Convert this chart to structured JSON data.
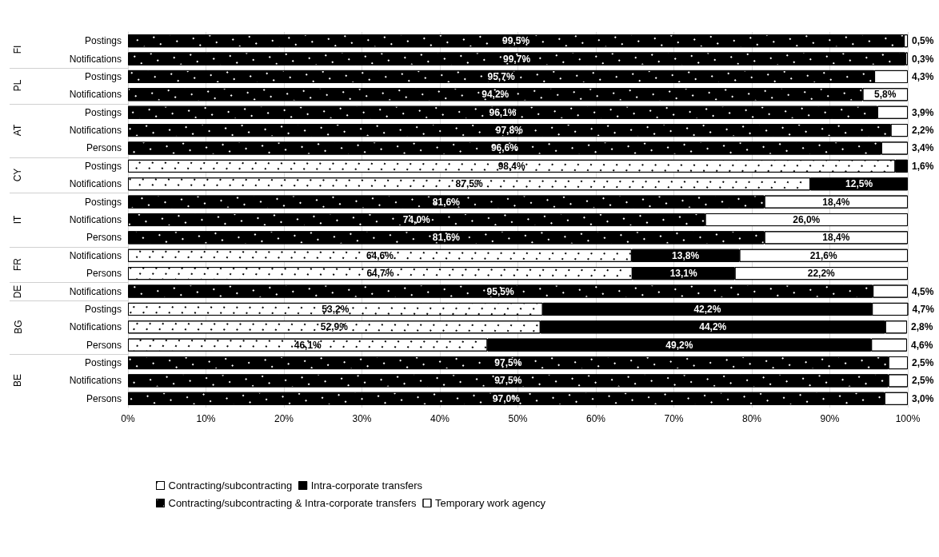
{
  "chart_data": {
    "type": "bar",
    "orientation": "horizontal",
    "stacked": true,
    "categories": [
      "Postings",
      "Notifications",
      "Postings",
      "Notifications",
      "Postings",
      "Notifications",
      "Persons",
      "Postings",
      "Notifications",
      "Postings",
      "Notifications",
      "Persons",
      "Notifications",
      "Persons",
      "Notifications",
      "Postings",
      "Notifications",
      "Persons",
      "Postings",
      "Notifications",
      "Persons"
    ],
    "annotations": [
      "FI",
      "PL",
      "AT",
      "CY",
      "IT",
      "FR",
      "DE",
      "BG",
      "BE"
    ],
    "series": [
      {
        "name": "Contracting/subcontracting",
        "color": "#ffffff",
        "values": [
          null,
          null,
          null,
          null,
          null,
          null,
          null,
          98.4,
          87.5,
          null,
          null,
          null,
          64.6,
          64.7,
          null,
          53.2,
          52.9,
          46.1,
          null,
          null,
          null
        ],
        "value_labels": [
          null,
          null,
          null,
          null,
          null,
          null,
          null,
          "98,4%",
          "87,5%",
          null,
          null,
          null,
          "64,6%",
          "64,7%",
          null,
          "53,2%",
          "52,9%",
          "46,1%",
          null,
          null,
          null
        ]
      },
      {
        "name": "Intra-corporate transfers",
        "color": "#000000",
        "values": [
          null,
          null,
          null,
          null,
          null,
          null,
          null,
          1.6,
          12.5,
          null,
          null,
          null,
          13.8,
          13.1,
          null,
          42.2,
          44.2,
          49.2,
          null,
          null,
          null
        ],
        "value_labels": [
          null,
          null,
          null,
          null,
          null,
          null,
          null,
          "1,6%",
          "12,5%",
          null,
          null,
          null,
          "13,8%",
          "13,1%",
          null,
          "42,2%",
          "44,2%",
          "49,2%",
          null,
          null,
          null
        ]
      },
      {
        "name": "Contracting/subcontracting & Intra-corporate transfers",
        "color": "#000000",
        "values": [
          99.5,
          99.7,
          95.7,
          94.2,
          96.1,
          97.8,
          96.6,
          null,
          null,
          81.6,
          74.0,
          81.6,
          null,
          null,
          95.5,
          null,
          null,
          null,
          97.5,
          97.5,
          97.0
        ],
        "value_labels": [
          "99,5%",
          "99,7%",
          "95,7%",
          "94,2%",
          "96,1%",
          "97,8%",
          "96,6%",
          null,
          null,
          "81,6%",
          "74,0%",
          "81,6%",
          null,
          null,
          "95,5%",
          null,
          null,
          null,
          "97,5%",
          "97,5%",
          "97,0%"
        ]
      },
      {
        "name": "Temporary work agency",
        "color": "#ffffff",
        "values": [
          0.5,
          0.3,
          4.3,
          5.8,
          3.9,
          2.2,
          3.4,
          null,
          null,
          18.4,
          26.0,
          18.4,
          21.6,
          22.2,
          4.5,
          4.7,
          2.8,
          4.6,
          2.5,
          2.5,
          3.0
        ],
        "value_labels": [
          "0,5%",
          "0,3%",
          "4,3%",
          "5,8%",
          "3,9%",
          "2,2%",
          "3,4%",
          null,
          null,
          "18,4%",
          "26,0%",
          "18,4%",
          "21,6%",
          "22,2%",
          "4,5%",
          "4,7%",
          "2,8%",
          "4,6%",
          "2,5%",
          "2,5%",
          "3,0%"
        ]
      }
    ],
    "xlim": [
      0,
      100
    ],
    "xticks": [
      {
        "value": 0,
        "label": "0%"
      },
      {
        "value": 10,
        "label": "10%"
      },
      {
        "value": 20,
        "label": "20%"
      },
      {
        "value": 30,
        "label": "30%"
      },
      {
        "value": 40,
        "label": "40%"
      },
      {
        "value": 50,
        "label": "50%"
      },
      {
        "value": 60,
        "label": "60%"
      },
      {
        "value": 70,
        "label": "70%"
      },
      {
        "value": 80,
        "label": "80%"
      },
      {
        "value": 90,
        "label": "90%"
      },
      {
        "value": 100,
        "label": "100%"
      }
    ],
    "grid": "x",
    "legend": "bottom"
  }
}
